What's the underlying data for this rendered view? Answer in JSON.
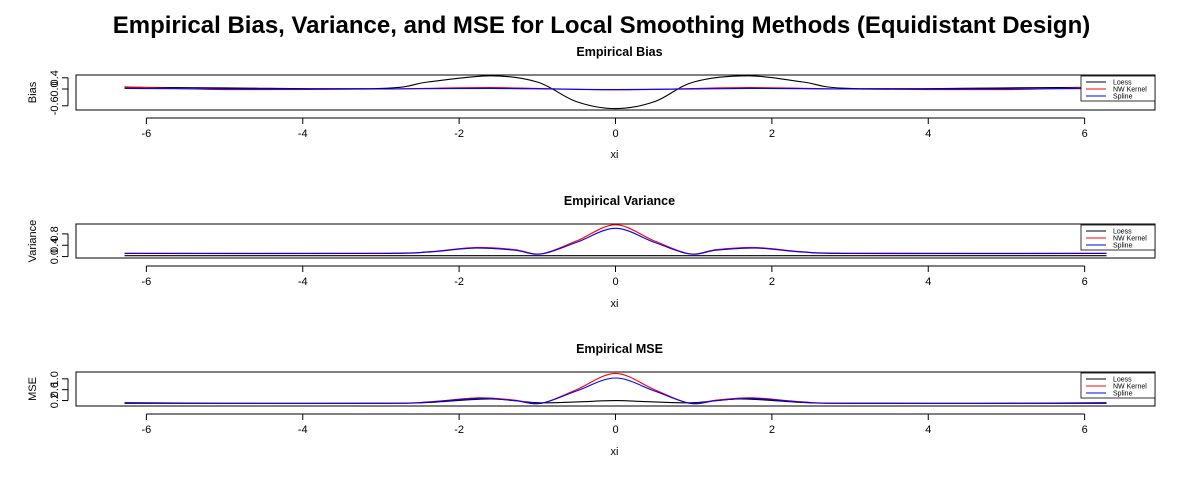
{
  "title": "Empirical Bias, Variance, and MSE for Local Smoothing Methods (Equidistant Design)",
  "legend_entries": [
    "Loess",
    "NW Kernel",
    "Spline"
  ],
  "colors": {
    "Loess": "#000000",
    "NW Kernel": "#ff0000",
    "Spline": "#0000ff"
  },
  "chart_data": [
    {
      "type": "line",
      "title": "Empirical Bias",
      "xlabel": "xi",
      "ylabel": "Bias",
      "xlim": [
        -6.9,
        6.9
      ],
      "ylim": [
        -0.75,
        0.5
      ],
      "xticks": [
        -6,
        -4,
        -2,
        0,
        2,
        4,
        6
      ],
      "yticks": [
        -0.6,
        0.0,
        0.4
      ],
      "ytick_labels": [
        "-0.6",
        "0.0",
        "0.4"
      ],
      "legend": "right",
      "grid": false,
      "series": [
        {
          "name": "Loess",
          "x": [
            -6.28,
            -5.0,
            -3.0,
            -2.4,
            -1.6,
            -1.0,
            -0.5,
            0.0,
            0.5,
            1.0,
            1.7,
            2.4,
            3.0,
            5.0,
            6.28
          ],
          "values": [
            0.06,
            0.04,
            0.02,
            0.25,
            0.47,
            0.25,
            -0.45,
            -0.7,
            -0.45,
            0.25,
            0.47,
            0.25,
            0.02,
            0.04,
            0.06
          ]
        },
        {
          "name": "NW Kernel",
          "x": [
            -6.28,
            -5.0,
            -3.0,
            -1.6,
            0.0,
            1.7,
            3.0,
            5.0,
            6.28
          ],
          "values": [
            0.08,
            -0.02,
            0.0,
            0.05,
            -0.03,
            0.05,
            0.0,
            -0.02,
            0.08
          ]
        },
        {
          "name": "Spline",
          "x": [
            -6.28,
            -5.0,
            -3.0,
            -1.6,
            0.0,
            1.7,
            3.0,
            5.0,
            6.28
          ],
          "values": [
            0.02,
            0.0,
            0.0,
            0.02,
            -0.02,
            0.02,
            0.0,
            0.0,
            0.02
          ]
        }
      ]
    },
    {
      "type": "line",
      "title": "Empirical Variance",
      "xlabel": "xi",
      "ylabel": "Variance",
      "xlim": [
        -6.9,
        6.9
      ],
      "ylim": [
        -0.05,
        1.15
      ],
      "xticks": [
        -6,
        -4,
        -2,
        0,
        2,
        4,
        6
      ],
      "yticks": [
        0.0,
        0.4,
        0.8
      ],
      "ytick_labels": [
        "0.0",
        "0.4",
        "0.8"
      ],
      "legend": "right",
      "grid": false,
      "series": [
        {
          "name": "Loess",
          "x": [
            -6.28,
            0.0,
            6.28
          ],
          "values": [
            0.03,
            0.03,
            0.03
          ]
        },
        {
          "name": "NW Kernel",
          "x": [
            -6.28,
            -3.0,
            -2.4,
            -1.8,
            -1.3,
            -0.95,
            -0.5,
            0.0,
            0.5,
            0.95,
            1.3,
            1.8,
            2.4,
            3.0,
            6.28
          ],
          "values": [
            0.12,
            0.12,
            0.17,
            0.32,
            0.25,
            0.1,
            0.55,
            1.12,
            0.55,
            0.1,
            0.25,
            0.32,
            0.17,
            0.12,
            0.12
          ]
        },
        {
          "name": "Spline",
          "x": [
            -6.28,
            -3.0,
            -2.4,
            -1.8,
            -1.3,
            -0.95,
            -0.5,
            0.0,
            0.5,
            0.95,
            1.3,
            1.8,
            2.4,
            3.0,
            6.28
          ],
          "values": [
            0.11,
            0.11,
            0.16,
            0.3,
            0.23,
            0.09,
            0.5,
            1.0,
            0.5,
            0.09,
            0.23,
            0.3,
            0.16,
            0.11,
            0.11
          ]
        }
      ]
    },
    {
      "type": "line",
      "title": "Empirical MSE",
      "xlabel": "xi",
      "ylabel": "MSE",
      "xlim": [
        -6.9,
        6.9
      ],
      "ylim": [
        0.0,
        1.25
      ],
      "xticks": [
        -6,
        -4,
        -2,
        0,
        2,
        4,
        6
      ],
      "yticks": [
        0.2,
        0.6,
        1.0
      ],
      "ytick_labels": [
        "0.2",
        "0.6",
        "1.0"
      ],
      "legend": "right",
      "grid": false,
      "series": [
        {
          "name": "Loess",
          "x": [
            -6.28,
            -5.0,
            -3.0,
            -2.4,
            -1.6,
            -1.0,
            -0.5,
            0.0,
            0.5,
            1.0,
            1.6,
            2.4,
            3.0,
            5.0,
            6.28
          ],
          "values": [
            0.12,
            0.1,
            0.1,
            0.13,
            0.26,
            0.12,
            0.15,
            0.2,
            0.15,
            0.12,
            0.26,
            0.13,
            0.1,
            0.1,
            0.12
          ]
        },
        {
          "name": "NW Kernel",
          "x": [
            -6.28,
            -3.0,
            -2.4,
            -1.75,
            -1.3,
            -0.95,
            -0.5,
            0.0,
            0.5,
            0.95,
            1.3,
            1.75,
            2.4,
            3.0,
            6.28
          ],
          "values": [
            0.1,
            0.1,
            0.15,
            0.3,
            0.22,
            0.1,
            0.6,
            1.2,
            0.6,
            0.1,
            0.22,
            0.3,
            0.15,
            0.1,
            0.1
          ]
        },
        {
          "name": "Spline",
          "x": [
            -6.28,
            -3.0,
            -2.4,
            -1.75,
            -1.3,
            -0.95,
            -0.5,
            0.0,
            0.5,
            0.95,
            1.3,
            1.75,
            2.4,
            3.0,
            6.28
          ],
          "values": [
            0.1,
            0.1,
            0.14,
            0.28,
            0.2,
            0.1,
            0.55,
            1.03,
            0.55,
            0.1,
            0.2,
            0.28,
            0.14,
            0.1,
            0.1
          ]
        }
      ]
    }
  ]
}
